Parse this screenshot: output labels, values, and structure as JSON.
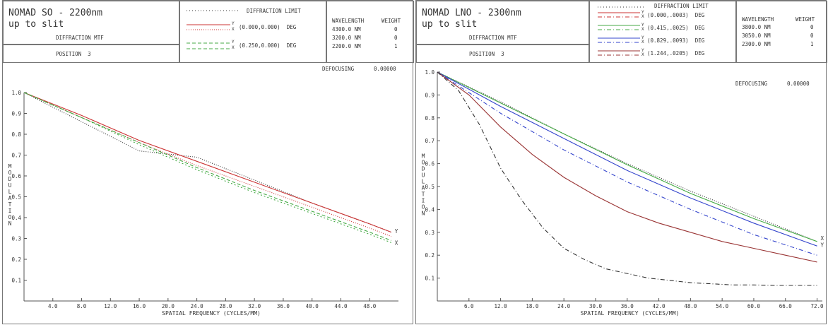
{
  "chart_data": [
    {
      "type": "line",
      "title": "NOMAD SO - 2200nm",
      "subtitle": "up to slit",
      "chart_label": "DIFFRACTION MTF",
      "position_label": "POSITION  3",
      "defocusing_label": "DEFOCUSING",
      "defocusing_value": "0.00000",
      "xlabel": "SPATIAL FREQUENCY (CYCLES/MM)",
      "ylabel": "MODULATION",
      "xlim": [
        0,
        52
      ],
      "ylim": [
        0,
        1.0
      ],
      "xticks": [
        "4.0",
        "8.0",
        "12.0",
        "16.0",
        "20.0",
        "24.0",
        "28.0",
        "32.0",
        "36.0",
        "40.0",
        "44.0",
        "48.0"
      ],
      "xtick_values": [
        4,
        8,
        12,
        16,
        20,
        24,
        28,
        32,
        36,
        40,
        44,
        48
      ],
      "yticks": [
        "0.1",
        "0.2",
        "0.3",
        "0.4",
        "0.5",
        "0.6",
        "0.7",
        "0.8",
        "0.9",
        "1.0"
      ],
      "ytick_values": [
        0.1,
        0.2,
        0.3,
        0.4,
        0.5,
        0.6,
        0.7,
        0.8,
        0.9,
        1.0
      ],
      "legend": [
        {
          "style": "dotted",
          "color": "#333333",
          "label": "DIFFRACTION LIMIT",
          "field": ""
        },
        {
          "style": "solid",
          "color": "#cc3333",
          "label": "(0.000,0.000)  DEG",
          "field": "Y"
        },
        {
          "style": "dotted",
          "color": "#cc3333",
          "label": "",
          "field": "X"
        },
        {
          "style": "dashed",
          "color": "#44aa44",
          "label": "(0.250,0.000)  DEG",
          "field": "Y"
        },
        {
          "style": "dashed",
          "color": "#44aa44",
          "label": "",
          "field": "X"
        }
      ],
      "wavelengths_header": [
        "WAVELENGTH",
        "WEIGHT"
      ],
      "wavelengths": [
        [
          "4300.0 NM",
          "0"
        ],
        [
          "3200.0 NM",
          "0"
        ],
        [
          "2200.0 NM",
          "1"
        ]
      ],
      "series": [
        {
          "color": "#333333",
          "dash": "1,2",
          "x": [
            0,
            8,
            16,
            24,
            32,
            40,
            48,
            51
          ],
          "y": [
            1.0,
            0.86,
            0.72,
            0.69,
            0.58,
            0.47,
            0.37,
            0.33
          ]
        },
        {
          "color": "#cc3333",
          "dash": "",
          "x": [
            0,
            8,
            16,
            24,
            32,
            40,
            48,
            51
          ],
          "y": [
            1.0,
            0.89,
            0.77,
            0.67,
            0.57,
            0.47,
            0.37,
            0.33
          ]
        },
        {
          "color": "#cc3333",
          "dash": "1,2",
          "x": [
            0,
            8,
            16,
            24,
            32,
            40,
            48,
            51
          ],
          "y": [
            1.0,
            0.88,
            0.76,
            0.65,
            0.55,
            0.45,
            0.35,
            0.31
          ]
        },
        {
          "color": "#44aa44",
          "dash": "5,3",
          "x": [
            0,
            8,
            16,
            24,
            32,
            40,
            48,
            51
          ],
          "y": [
            1.0,
            0.88,
            0.76,
            0.64,
            0.53,
            0.43,
            0.33,
            0.29
          ]
        },
        {
          "color": "#44aa44",
          "dash": "2,3",
          "x": [
            0,
            8,
            16,
            24,
            32,
            40,
            48,
            51
          ],
          "y": [
            1.0,
            0.88,
            0.75,
            0.63,
            0.52,
            0.42,
            0.32,
            0.28
          ]
        }
      ],
      "end_labels": [
        {
          "text": "Y",
          "x": 51,
          "y": 0.335
        },
        {
          "text": "X",
          "x": 51,
          "y": 0.28
        }
      ]
    },
    {
      "type": "line",
      "title": "NOMAD LNO - 2300nm",
      "subtitle": "up to slit",
      "chart_label": "DIFFRACTION MTF",
      "position_label": "POSITION  3",
      "defocusing_label": "DEFOCUSING",
      "defocusing_value": "0.00000",
      "xlabel": "SPATIAL FREQUENCY (CYCLES/MM)",
      "ylabel": "MODULATION",
      "xlim": [
        0,
        73
      ],
      "ylim": [
        0,
        1.0
      ],
      "xticks": [
        "6.0",
        "12.0",
        "18.0",
        "24.0",
        "30.0",
        "36.0",
        "42.0",
        "48.0",
        "54.0",
        "60.0",
        "66.0",
        "72.0"
      ],
      "xtick_values": [
        6,
        12,
        18,
        24,
        30,
        36,
        42,
        48,
        54,
        60,
        66,
        72
      ],
      "yticks": [
        "0.1",
        "0.2",
        "0.3",
        "0.4",
        "0.5",
        "0.6",
        "0.7",
        "0.8",
        "0.9",
        "1.0"
      ],
      "ytick_values": [
        0.1,
        0.2,
        0.3,
        0.4,
        0.5,
        0.6,
        0.7,
        0.8,
        0.9,
        1.0
      ],
      "legend": [
        {
          "style": "dotted",
          "color": "#333333",
          "label": "DIFFRACTION LIMIT",
          "field": ""
        },
        {
          "style": "solid",
          "color": "#cc3333",
          "label": "(0.000,.0003)  DEG",
          "field": "Y"
        },
        {
          "style": "dashdot",
          "color": "#cc3333",
          "label": "",
          "field": "X"
        },
        {
          "style": "solid",
          "color": "#44aa44",
          "label": "(0.415,.0025)  DEG",
          "field": "Y"
        },
        {
          "style": "dashdot",
          "color": "#44aa44",
          "label": "",
          "field": "X"
        },
        {
          "style": "solid",
          "color": "#3344cc",
          "label": "(0.829,.0093)  DEG",
          "field": "Y"
        },
        {
          "style": "dashdot",
          "color": "#3344cc",
          "label": "",
          "field": "X"
        },
        {
          "style": "solid",
          "color": "#993333",
          "label": "(1.244,.0205)  DEG",
          "field": "Y"
        },
        {
          "style": "dashdot",
          "color": "#993333",
          "label": "",
          "field": "X"
        }
      ],
      "wavelengths_header": [
        "WAVELENGTH",
        "WEIGHT"
      ],
      "wavelengths": [
        [
          "3800.0 NM",
          "0"
        ],
        [
          "3050.0 NM",
          "0"
        ],
        [
          "2300.0 NM",
          "1"
        ]
      ],
      "series": [
        {
          "color": "#333333",
          "dash": "1,2",
          "x": [
            0,
            12,
            24,
            36,
            48,
            60,
            72
          ],
          "y": [
            1.0,
            0.87,
            0.73,
            0.6,
            0.48,
            0.37,
            0.26
          ]
        },
        {
          "color": "#44aa44",
          "dash": "",
          "x": [
            0,
            12,
            24,
            36,
            48,
            60,
            72
          ],
          "y": [
            1.0,
            0.865,
            0.73,
            0.595,
            0.47,
            0.36,
            0.26
          ]
        },
        {
          "color": "#3344cc",
          "dash": "",
          "x": [
            0,
            12,
            24,
            36,
            48,
            60,
            72
          ],
          "y": [
            1.0,
            0.85,
            0.71,
            0.57,
            0.45,
            0.34,
            0.24
          ]
        },
        {
          "color": "#3344cc",
          "dash": "6,3,1,3",
          "x": [
            0,
            12,
            24,
            36,
            48,
            60,
            72
          ],
          "y": [
            1.0,
            0.82,
            0.66,
            0.52,
            0.4,
            0.29,
            0.2
          ]
        },
        {
          "color": "#993333",
          "dash": "",
          "x": [
            0,
            6,
            12,
            18,
            24,
            30,
            36,
            42,
            48,
            54,
            60,
            66,
            72
          ],
          "y": [
            1.0,
            0.9,
            0.76,
            0.64,
            0.54,
            0.46,
            0.39,
            0.34,
            0.3,
            0.26,
            0.23,
            0.2,
            0.17
          ]
        },
        {
          "color": "#333333",
          "dash": "6,3,1,3",
          "x": [
            0,
            4,
            8,
            12,
            16,
            20,
            24,
            28,
            32,
            36,
            40,
            44,
            48,
            52,
            56,
            60,
            64,
            68,
            72
          ],
          "y": [
            1.0,
            0.92,
            0.77,
            0.58,
            0.44,
            0.32,
            0.23,
            0.18,
            0.14,
            0.12,
            0.1,
            0.09,
            0.08,
            0.075,
            0.07,
            0.07,
            0.068,
            0.068,
            0.068
          ]
        }
      ],
      "end_labels": [
        {
          "text": "X",
          "x": 72,
          "y": 0.275
        },
        {
          "text": "Y",
          "x": 72,
          "y": 0.245
        }
      ]
    }
  ]
}
